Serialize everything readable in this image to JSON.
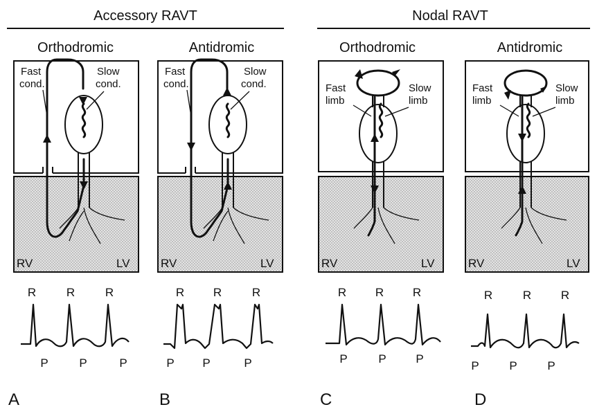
{
  "groups": [
    {
      "title": "Accessory RAVT"
    },
    {
      "title": "Nodal RAVT"
    }
  ],
  "panels": [
    {
      "letter": "A",
      "subtitle": "Orthodromic",
      "left_label": [
        "Fast",
        "cond."
      ],
      "right_label": [
        "Slow",
        "cond."
      ],
      "chamber_left": "RV",
      "chamber_right": "LV",
      "wave_r": "R",
      "wave_p": "P"
    },
    {
      "letter": "B",
      "subtitle": "Antidromic",
      "left_label": [
        "Fast",
        "cond."
      ],
      "right_label": [
        "Slow",
        "cond."
      ],
      "chamber_left": "RV",
      "chamber_right": "LV",
      "wave_r": "R",
      "wave_p": "P"
    },
    {
      "letter": "C",
      "subtitle": "Orthodromic",
      "left_label": [
        "Fast",
        "limb"
      ],
      "right_label": [
        "Slow",
        "limb"
      ],
      "chamber_left": "RV",
      "chamber_right": "LV",
      "wave_r": "R",
      "wave_p": "P"
    },
    {
      "letter": "D",
      "subtitle": "Antidromic",
      "left_label": [
        "Fast",
        "limb"
      ],
      "right_label": [
        "Slow",
        "limb"
      ],
      "chamber_left": "RV",
      "chamber_right": "LV",
      "wave_r": "R",
      "wave_p": "P"
    }
  ]
}
